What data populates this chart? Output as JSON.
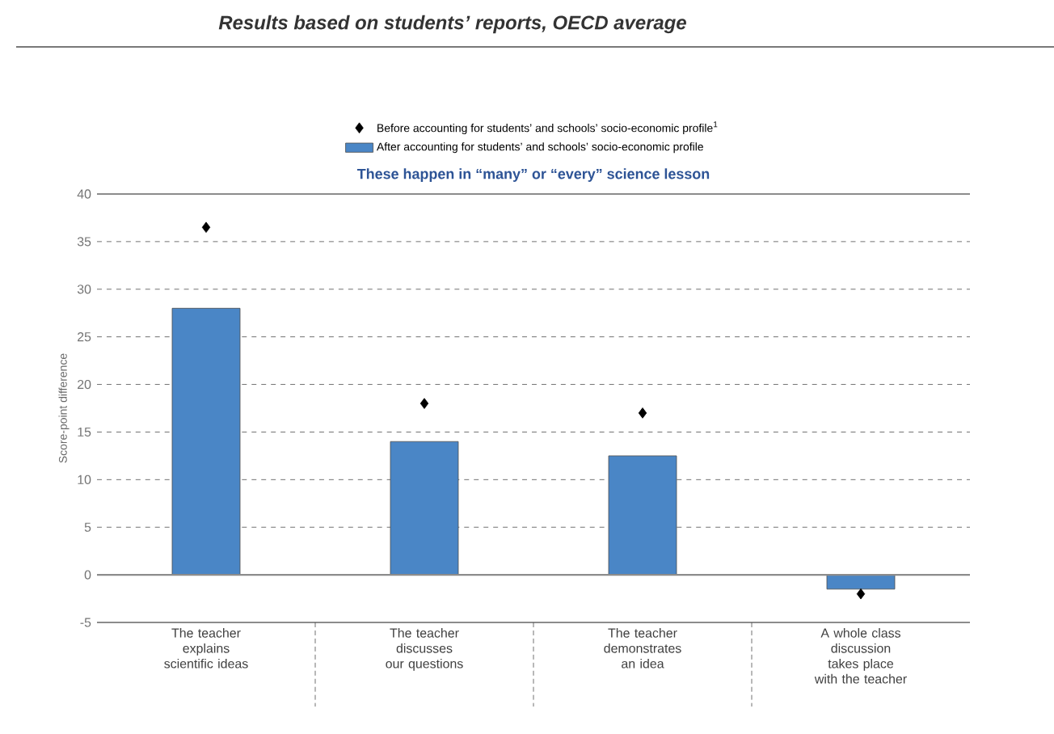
{
  "chart_data": {
    "type": "bar",
    "title": "*Results based on students’ reports, OECD average*",
    "subtitle": "These happen in “many” or “every” science lesson",
    "ylabel": "Score-point difference",
    "categories": [
      "The teacher explains scientific ideas",
      "The teacher discusses our questions",
      "The teacher demonstrates an idea",
      "A whole class discussion takes place with the teacher"
    ],
    "series": [
      {
        "name": "Before accounting for students’ and schools’ socio-economic profile$^{1}$",
        "type": "scatter",
        "marker": "diamond",
        "color": "#000000",
        "values": [
          36.5,
          18,
          17,
          -2
        ]
      },
      {
        "name": "After accounting for students’ and schools’ socio-economic profile",
        "color": "#4a86c6",
        "values": [
          28,
          14,
          12.5,
          -1.5
        ]
      }
    ],
    "ylim": [
      -5,
      40
    ],
    "yticks": [
      -5,
      0,
      5,
      10,
      15,
      20,
      25,
      30,
      35,
      40
    ],
    "grid": "y",
    "legend": "top"
  }
}
